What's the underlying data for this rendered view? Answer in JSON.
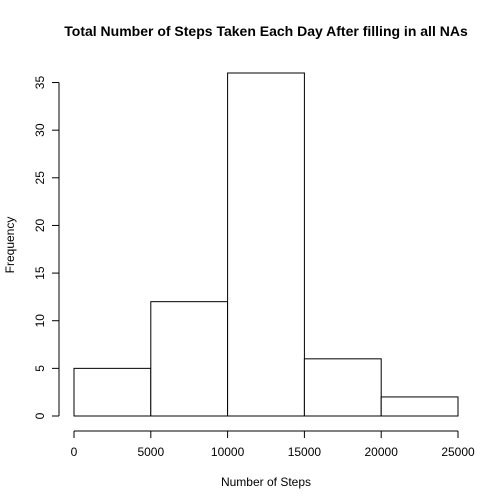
{
  "chart_data": {
    "type": "bar",
    "title": "Total Number of Steps Taken Each Day After filling in all NAs",
    "xlabel": "Number of Steps",
    "ylabel": "Frequency",
    "bins": [
      {
        "from": 0,
        "to": 5000,
        "count": 5
      },
      {
        "from": 5000,
        "to": 10000,
        "count": 12
      },
      {
        "from": 10000,
        "to": 15000,
        "count": 36
      },
      {
        "from": 15000,
        "to": 20000,
        "count": 6
      },
      {
        "from": 20000,
        "to": 25000,
        "count": 2
      }
    ],
    "xlim": [
      0,
      25000
    ],
    "ylim": [
      0,
      36
    ],
    "x_ticks": [
      0,
      5000,
      10000,
      15000,
      20000,
      25000
    ],
    "y_ticks": [
      0,
      5,
      10,
      15,
      20,
      25,
      30,
      35
    ],
    "bar_fill": "#ffffff",
    "bar_stroke": "#000000",
    "grid": false,
    "legend": "none"
  }
}
